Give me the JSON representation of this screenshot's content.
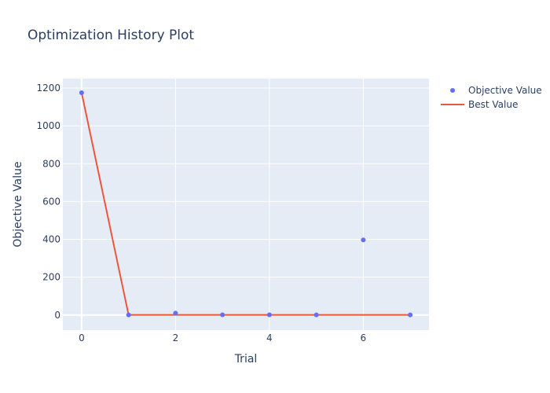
{
  "chart_data": {
    "type": "scatter",
    "title": "Optimization History Plot",
    "xlabel": "Trial",
    "ylabel": "Objective Value",
    "xlim": [
      -0.4,
      7.4
    ],
    "ylim": [
      -80,
      1250
    ],
    "x_ticks": [
      0,
      2,
      4,
      6
    ],
    "y_ticks": [
      0,
      200,
      400,
      600,
      800,
      1000,
      1200
    ],
    "grid": true,
    "legend_position": "top-right",
    "series": [
      {
        "name": "Objective Value",
        "mode": "markers",
        "color": "#636efa",
        "x": [
          0,
          1,
          2,
          3,
          4,
          5,
          6,
          7
        ],
        "values": [
          1175,
          0.5,
          10,
          1,
          1,
          0.5,
          397,
          0.5
        ]
      },
      {
        "name": "Best Value",
        "mode": "line",
        "color": "#ef553b",
        "x": [
          0,
          1,
          2,
          3,
          4,
          5,
          6,
          7
        ],
        "values": [
          1175,
          0.5,
          0.5,
          0.5,
          0.5,
          0.5,
          0.5,
          0.5
        ]
      }
    ]
  }
}
